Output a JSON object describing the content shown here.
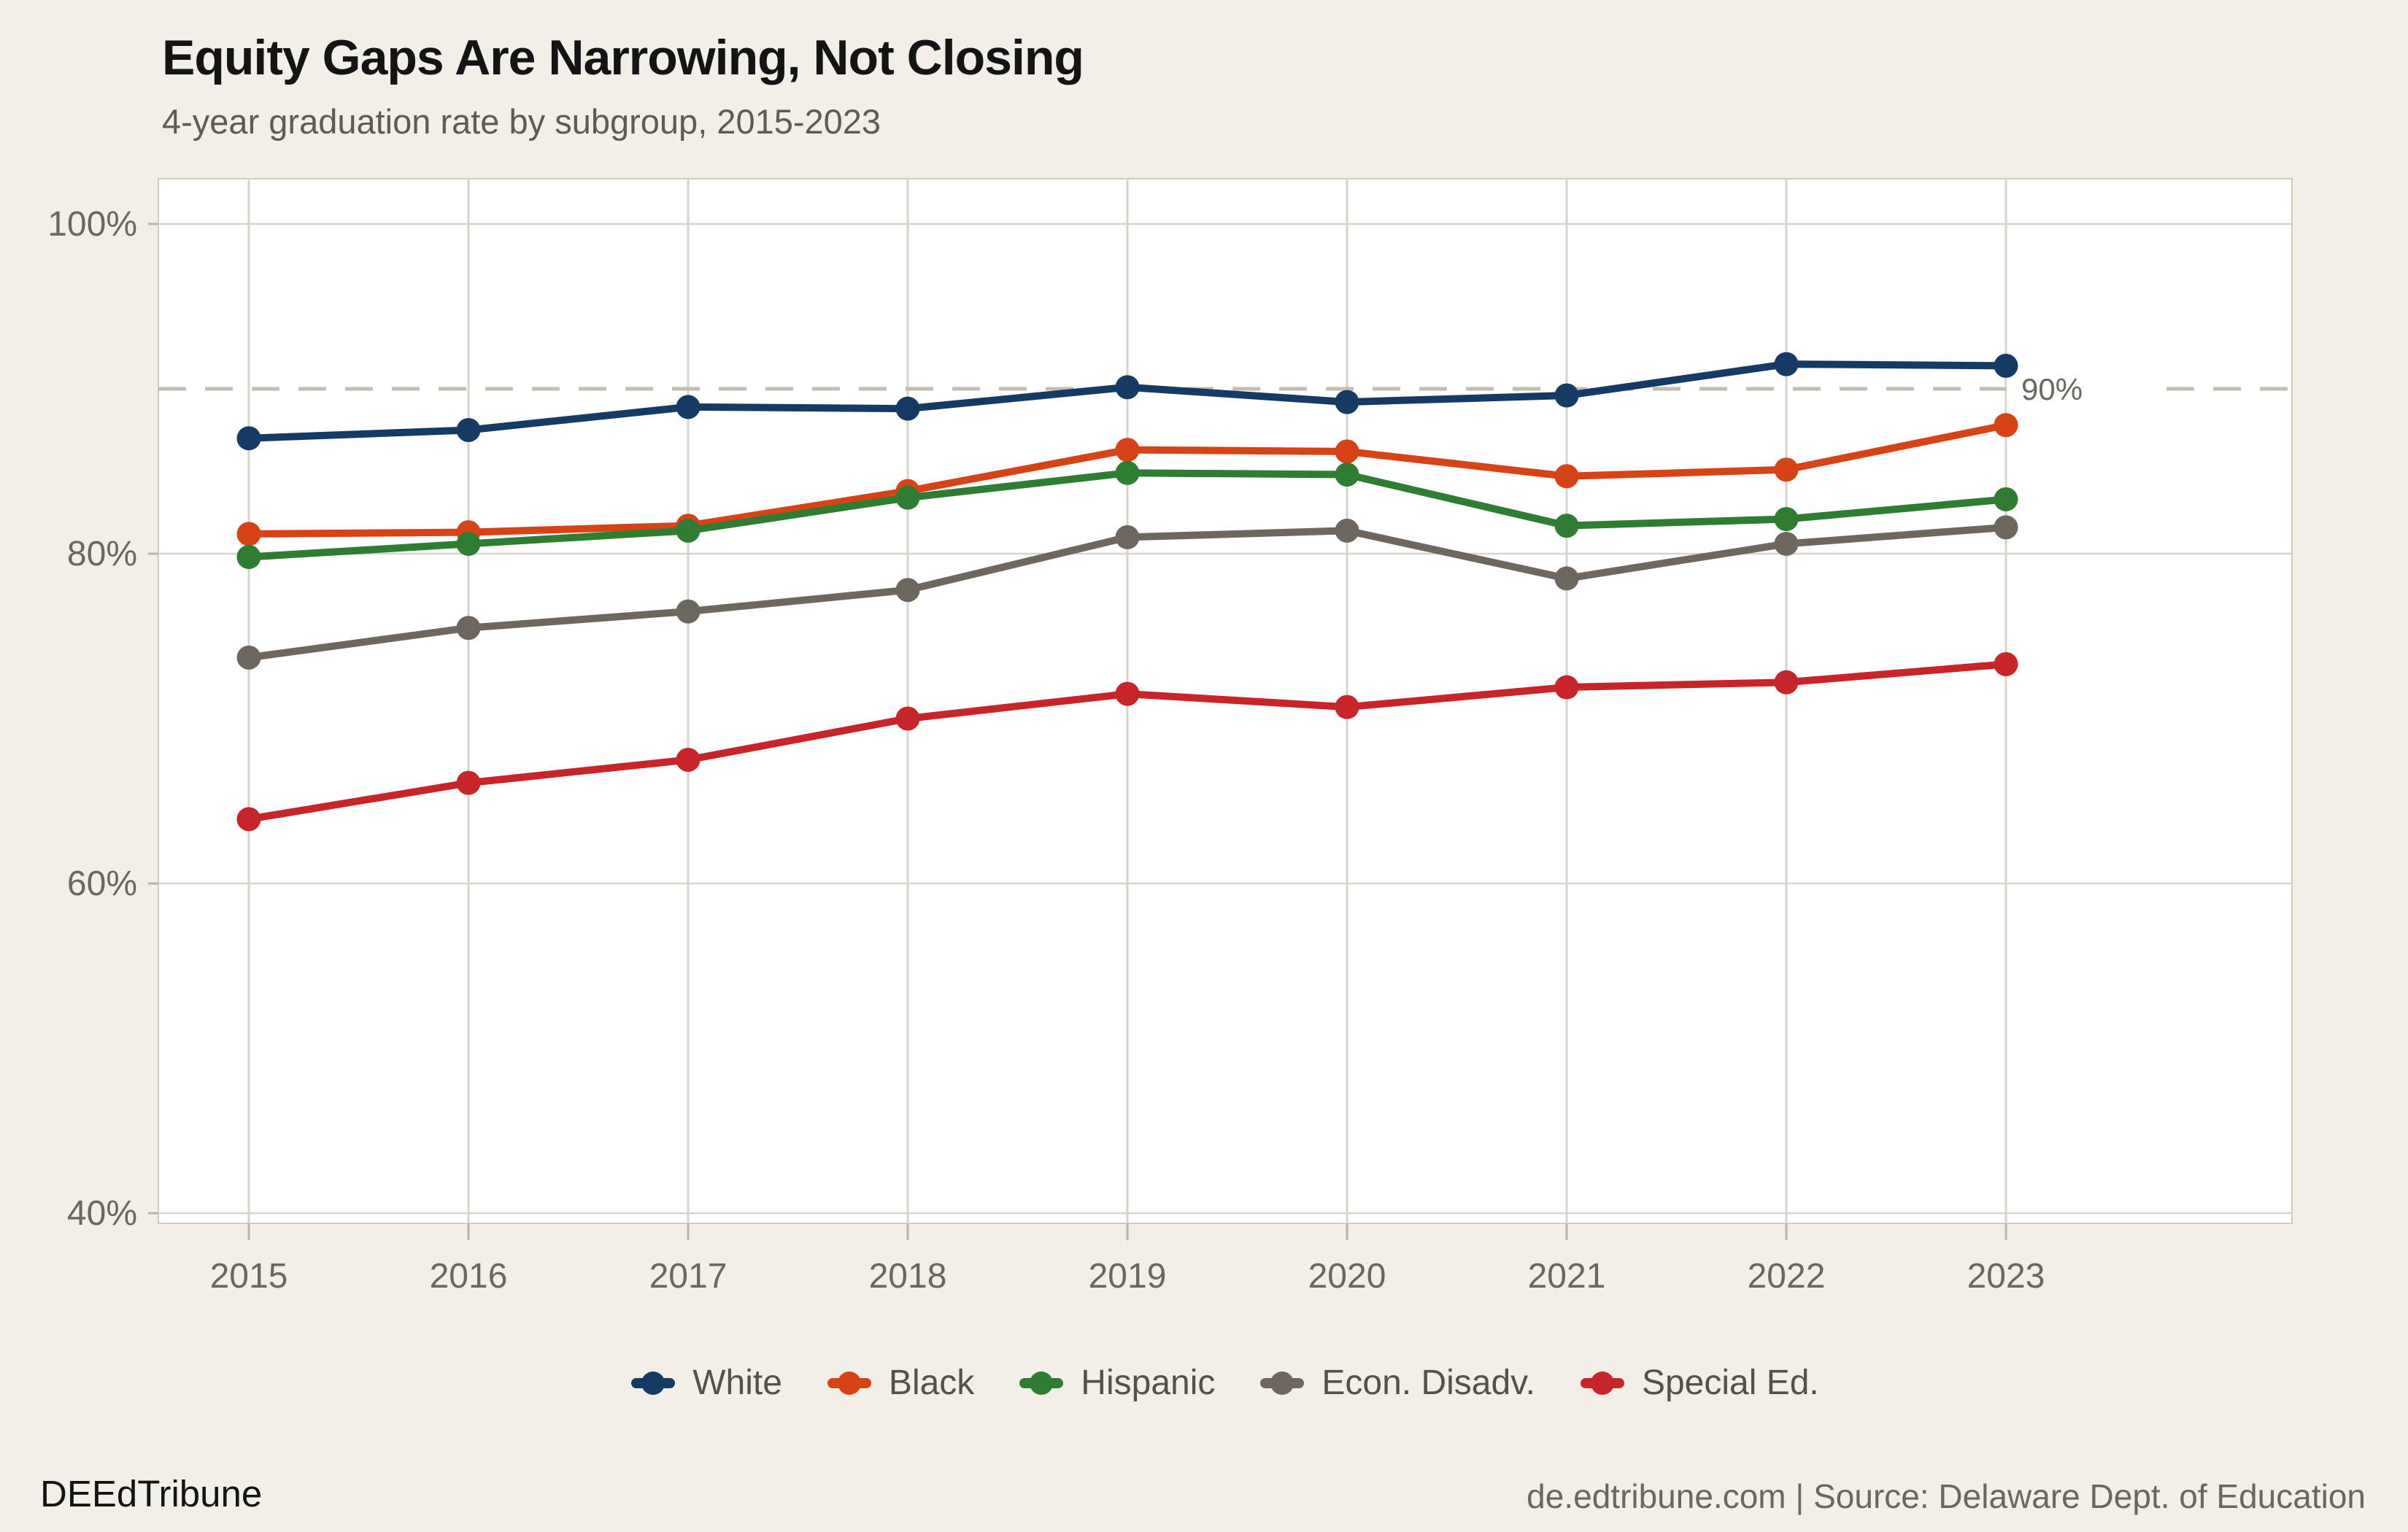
{
  "header": {
    "title": "Equity Gaps Are Narrowing, Not Closing",
    "subtitle": "4-year graduation rate by subgroup, 2015-2023"
  },
  "footer": {
    "brand": "DEEdTribune",
    "source": "de.edtribune.com | Source: Delaware Dept. of Education"
  },
  "colors": {
    "background": "#f2efe9",
    "plot_background": "#ffffff",
    "plot_border": "#cfcac1",
    "gridline": "#d9d4cb",
    "tick_mark": "#b9b3a8",
    "goal_line": "#c2bcb1",
    "tick_label": "#6b665e",
    "goal_label": "#6b665e",
    "title": "#141414",
    "subtitle": "#5f5b54",
    "legend_text": "#55514a"
  },
  "chart_data": {
    "type": "line",
    "title": "Equity Gaps Are Narrowing, Not Closing",
    "subtitle": "4-year graduation rate by subgroup, 2015-2023",
    "categories": [
      "2015",
      "2016",
      "2017",
      "2018",
      "2019",
      "2020",
      "2021",
      "2022",
      "2023"
    ],
    "series": [
      {
        "name": "White",
        "color": "#153a64",
        "values": [
          87.0,
          87.5,
          88.9,
          88.8,
          90.1,
          89.2,
          89.6,
          91.5,
          91.4
        ]
      },
      {
        "name": "Black",
        "color": "#d64317",
        "values": [
          81.2,
          81.3,
          81.7,
          83.8,
          86.3,
          86.2,
          84.7,
          85.1,
          87.8
        ]
      },
      {
        "name": "Hispanic",
        "color": "#2e7d32",
        "values": [
          79.8,
          80.6,
          81.4,
          83.4,
          84.9,
          84.8,
          81.7,
          82.1,
          83.3
        ]
      },
      {
        "name": "Econ. Disadv.",
        "color": "#6d675f",
        "values": [
          73.7,
          75.5,
          76.5,
          77.8,
          81.0,
          81.4,
          78.5,
          80.6,
          81.6
        ]
      },
      {
        "name": "Special Ed.",
        "color": "#c8252b",
        "values": [
          63.9,
          66.1,
          67.5,
          70.0,
          71.5,
          70.7,
          71.9,
          72.2,
          73.3
        ]
      }
    ],
    "y_ticks": [
      100,
      80,
      60,
      40
    ],
    "y_tick_labels": [
      "100%",
      "80%",
      "60%",
      "40%"
    ],
    "ylim": [
      39.4,
      102.7
    ],
    "grid": true,
    "legend_position": "bottom",
    "goal_line": {
      "value": 90,
      "label": "90%"
    },
    "xlabel": "",
    "ylabel": ""
  }
}
